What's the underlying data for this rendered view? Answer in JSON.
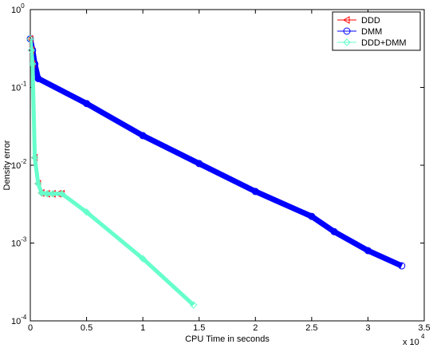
{
  "chart_data": {
    "type": "line",
    "x_label": "CPU Time in seconds",
    "y_label": "Density error",
    "x_multiplier": "x 10",
    "x_multiplier_exponent": "4",
    "xlim": [
      0,
      3.5
    ],
    "xticks": [
      0,
      0.5,
      1,
      1.5,
      2,
      2.5,
      3,
      3.5
    ],
    "ylim": [
      0.0001,
      1
    ],
    "y_scale": "log",
    "yticks": [
      {
        "value": 1,
        "label": "10",
        "exponent": "0"
      },
      {
        "value": 0.1,
        "label": "10",
        "exponent": "-1"
      },
      {
        "value": 0.01,
        "label": "10",
        "exponent": "-2"
      },
      {
        "value": 0.001,
        "label": "10",
        "exponent": "-3"
      },
      {
        "value": 0.0001,
        "label": "10",
        "exponent": "-4"
      }
    ],
    "legend": "upper right",
    "series": [
      {
        "name": "DDD",
        "color": "#ff0000",
        "marker": "triangle-left",
        "x": [
          0,
          0.01,
          0.02,
          0.04,
          0.07,
          0.1,
          0.15,
          0.2,
          0.25,
          0.28
        ],
        "values": [
          0.42,
          0.3,
          0.2,
          0.0125,
          0.0058,
          0.0044,
          0.0043,
          0.0043,
          0.0043,
          0.0043
        ]
      },
      {
        "name": "DMM",
        "color": "#0000ff",
        "marker": "circle",
        "x": [
          0,
          0.02,
          0.04,
          0.07,
          0.5,
          1,
          1.5,
          2,
          2.5,
          2.7,
          3,
          3.3
        ],
        "values": [
          0.42,
          0.3,
          0.2,
          0.13,
          0.062,
          0.024,
          0.0105,
          0.0046,
          0.0022,
          0.0014,
          0.0008,
          0.00051
        ]
      },
      {
        "name": "DDD+DMM",
        "color": "#66ffcc",
        "marker": "diamond",
        "x": [
          0,
          0.01,
          0.02,
          0.04,
          0.07,
          0.1,
          0.15,
          0.2,
          0.28,
          0.5,
          1,
          1.45
        ],
        "values": [
          0.42,
          0.3,
          0.2,
          0.0125,
          0.0058,
          0.0044,
          0.0043,
          0.0043,
          0.0043,
          0.0025,
          0.00063,
          0.00016
        ]
      }
    ]
  }
}
